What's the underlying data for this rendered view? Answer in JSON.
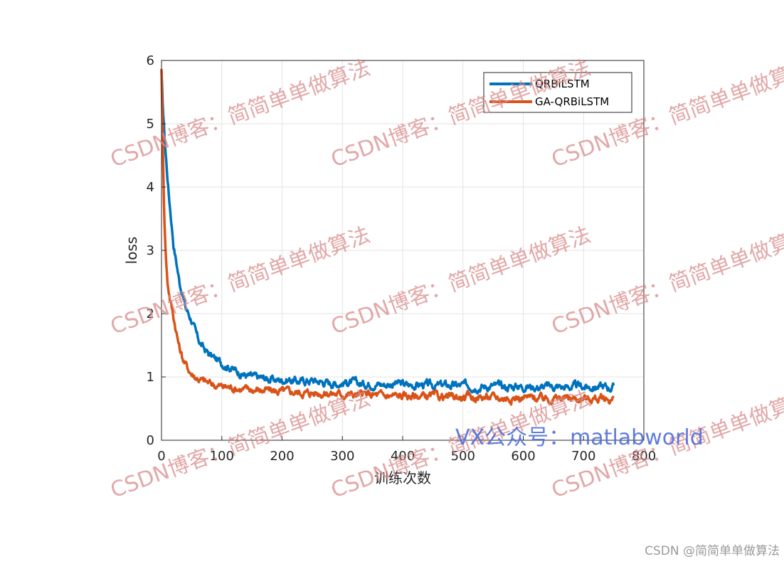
{
  "chart_data": {
    "type": "line",
    "title": "",
    "xlabel": "训练次数",
    "ylabel": "loss",
    "xlim": [
      0,
      800
    ],
    "ylim": [
      0,
      6
    ],
    "xticks": [
      0,
      100,
      200,
      300,
      400,
      500,
      600,
      700,
      800
    ],
    "yticks": [
      0,
      1,
      2,
      3,
      4,
      5,
      6
    ],
    "grid": true,
    "legend_position": "top-right",
    "series": [
      {
        "name": "QRBiLSTM",
        "color": "#0072BD",
        "x": [
          0,
          2,
          5,
          8,
          12,
          16,
          20,
          25,
          30,
          35,
          40,
          45,
          50,
          55,
          60,
          70,
          80,
          90,
          100,
          110,
          120,
          130,
          140,
          150,
          170,
          190,
          210,
          230,
          250,
          270,
          290,
          310,
          330,
          350,
          370,
          390,
          410,
          430,
          450,
          470,
          490,
          510,
          530,
          550,
          570,
          590,
          610,
          630,
          650,
          670,
          690,
          710,
          730,
          750
        ],
        "y": [
          5.8,
          5.3,
          4.8,
          4.4,
          3.9,
          3.5,
          3.1,
          2.8,
          2.5,
          2.3,
          2.1,
          2.0,
          1.9,
          1.75,
          1.6,
          1.45,
          1.35,
          1.28,
          1.22,
          1.18,
          1.12,
          1.07,
          1.03,
          1.0,
          0.98,
          0.95,
          0.96,
          0.93,
          0.95,
          0.92,
          0.9,
          0.92,
          0.89,
          0.9,
          0.88,
          0.9,
          0.87,
          0.88,
          0.86,
          0.87,
          0.86,
          0.87,
          0.85,
          0.86,
          0.84,
          0.86,
          0.85,
          0.84,
          0.85,
          0.84,
          0.85,
          0.84,
          0.85,
          0.83
        ]
      },
      {
        "name": "GA-QRBiLSTM",
        "color": "#D95319",
        "x": [
          0,
          2,
          4,
          6,
          8,
          10,
          14,
          18,
          22,
          26,
          30,
          35,
          40,
          45,
          50,
          60,
          70,
          80,
          90,
          100,
          120,
          140,
          160,
          180,
          200,
          220,
          240,
          260,
          280,
          300,
          320,
          340,
          360,
          380,
          400,
          420,
          440,
          460,
          480,
          500,
          520,
          540,
          560,
          580,
          600,
          620,
          640,
          660,
          680,
          700,
          720,
          740,
          750
        ],
        "y": [
          5.9,
          4.8,
          3.8,
          3.2,
          2.8,
          2.5,
          2.25,
          2.05,
          1.85,
          1.65,
          1.45,
          1.3,
          1.2,
          1.12,
          1.05,
          0.98,
          0.93,
          0.9,
          0.87,
          0.85,
          0.83,
          0.8,
          0.8,
          0.78,
          0.77,
          0.76,
          0.75,
          0.75,
          0.74,
          0.73,
          0.72,
          0.72,
          0.71,
          0.7,
          0.7,
          0.7,
          0.69,
          0.69,
          0.68,
          0.68,
          0.68,
          0.68,
          0.67,
          0.67,
          0.67,
          0.67,
          0.66,
          0.66,
          0.66,
          0.66,
          0.66,
          0.65,
          0.65
        ]
      }
    ]
  },
  "watermark": {
    "text": "CSDN博客：简简单单做算法",
    "vx_text": "VX公众号：matlabworld",
    "footer": "CSDN @简简单单做算法"
  }
}
